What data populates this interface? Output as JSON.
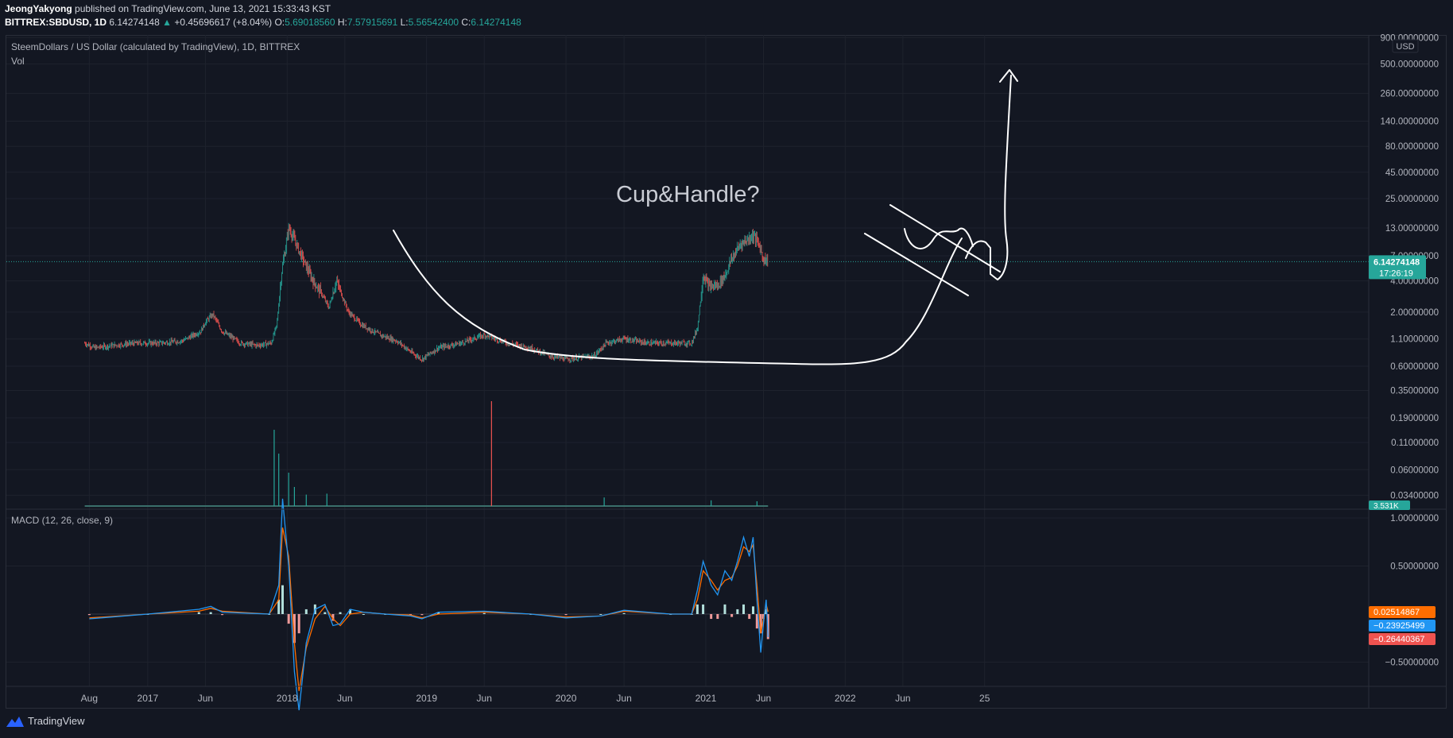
{
  "header": {
    "author": "JeongYakyong",
    "published_text": "published on TradingView.com, June 13, 2021 15:33:43 KST",
    "symbol": "BITTREX:SBDUSD, 1D",
    "last": "6.14274148",
    "change": "+0.45696617 (+8.04%)",
    "o_label": "O:",
    "o": "5.69018560",
    "h_label": "H:",
    "h": "7.57915691",
    "l_label": "L:",
    "l": "5.56542400",
    "c_label": "C:",
    "c": "6.14274148"
  },
  "main_pane": {
    "title": "SteemDollars / US Dollar (calculated by TradingView), 1D, BITTREX",
    "vol_label": "Vol",
    "currency": "USD",
    "price_tag": "6.14274148",
    "countdown": "17:26:19",
    "vol_tag": "3.531K",
    "annotation": "Cup&Handle?"
  },
  "macd_pane": {
    "title": "MACD (12, 26, close, 9)",
    "tag_signal": "0.02514867",
    "tag_macd": "−0.23925499",
    "tag_hist": "−0.26440367"
  },
  "brand": "TradingView",
  "colors": {
    "up": "#26a69a",
    "down": "#ef5350",
    "macd": "#2196f3",
    "signal": "#ff6d00",
    "bg": "#131722"
  },
  "chart_data": [
    {
      "type": "line",
      "title": "SteemDollars / US Dollar (calculated by TradingView), 1D, BITTREX",
      "scale": "log",
      "y_tick_labels": [
        "900.00000000",
        "500.00000000",
        "260.00000000",
        "140.00000000",
        "80.00000000",
        "45.00000000",
        "25.00000000",
        "13.00000000",
        "7.00000000",
        "4.00000000",
        "2.00000000",
        "1.10000000",
        "0.60000000",
        "0.35000000",
        "0.19000000",
        "0.11000000",
        "0.06000000",
        "0.03400000"
      ],
      "x_tick_labels": [
        "Aug",
        "2017",
        "Jun",
        "2018",
        "Jun",
        "2019",
        "Jun",
        "2020",
        "Jun",
        "2021",
        "Jun",
        "2022",
        "Jun",
        "25"
      ],
      "series": [
        {
          "x": [
            "2016-07-20",
            "2016-08-15",
            "2016-10-01",
            "2016-12-01",
            "2017-02-01",
            "2017-04-01",
            "2017-05-20",
            "2017-06-01",
            "2017-06-20",
            "2017-07-15",
            "2017-09-01",
            "2017-10-15",
            "2017-11-20",
            "2017-12-05",
            "2017-12-18",
            "2018-01-05",
            "2018-01-20",
            "2018-02-15",
            "2018-03-10",
            "2018-04-01",
            "2018-04-20",
            "2018-05-10",
            "2018-06-10",
            "2018-07-15",
            "2018-09-01",
            "2018-10-15",
            "2018-11-25",
            "2018-12-20",
            "2019-02-01",
            "2019-04-01",
            "2019-06-01",
            "2019-08-01",
            "2019-10-01",
            "2019-11-20",
            "2020-01-01",
            "2020-03-15",
            "2020-04-15",
            "2020-06-01",
            "2020-08-01",
            "2020-10-01",
            "2020-11-25",
            "2020-12-10",
            "2020-12-25",
            "2021-01-10",
            "2021-02-01",
            "2021-02-20",
            "2021-03-10",
            "2021-04-01",
            "2021-04-20",
            "2021-05-05",
            "2021-05-20",
            "2021-06-01",
            "2021-06-13"
          ],
          "y": [
            1.0,
            0.9,
            0.95,
            1.0,
            1.0,
            1.05,
            1.3,
            1.6,
            1.9,
            1.3,
            1.0,
            0.95,
            1.0,
            1.5,
            5.0,
            13.0,
            10.0,
            6.0,
            4.0,
            3.0,
            2.2,
            4.0,
            2.0,
            1.5,
            1.2,
            1.05,
            0.8,
            0.7,
            0.9,
            1.0,
            1.2,
            1.0,
            0.9,
            0.75,
            0.7,
            0.75,
            1.0,
            1.1,
            1.0,
            1.0,
            1.0,
            1.4,
            4.5,
            3.5,
            3.6,
            4.5,
            6.5,
            9.0,
            10.0,
            11.0,
            9.0,
            6.5,
            6.14
          ]
        }
      ]
    },
    {
      "type": "bar",
      "title": "Vol",
      "x": [
        "2017-11-28",
        "2017-12-10",
        "2018-01-05",
        "2018-01-20",
        "2018-02-20",
        "2018-04-15",
        "2019-06-20",
        "2020-04-10",
        "2021-01-15",
        "2021-05-15"
      ],
      "values": [
        8.0,
        5.5,
        3.5,
        2.0,
        1.2,
        1.3,
        11.0,
        0.9,
        0.6,
        0.5
      ],
      "last_value": "3.531K"
    },
    {
      "type": "line",
      "title": "MACD (12, 26, close, 9)",
      "y_tick_labels": [
        "1.00000000",
        "0.50000000",
        "−0.50000000"
      ],
      "x": [
        "2016-08-01",
        "2017-01-01",
        "2017-05-15",
        "2017-06-15",
        "2017-07-15",
        "2017-11-15",
        "2017-12-10",
        "2017-12-20",
        "2018-01-05",
        "2018-01-20",
        "2018-02-01",
        "2018-02-20",
        "2018-03-15",
        "2018-04-10",
        "2018-05-01",
        "2018-05-20",
        "2018-06-15",
        "2018-07-20",
        "2018-09-15",
        "2018-11-20",
        "2018-12-20",
        "2019-02-01",
        "2019-06-01",
        "2019-10-01",
        "2020-01-01",
        "2020-04-01",
        "2020-06-01",
        "2020-10-01",
        "2020-11-25",
        "2020-12-10",
        "2020-12-25",
        "2021-01-15",
        "2021-02-01",
        "2021-02-20",
        "2021-03-10",
        "2021-03-25",
        "2021-04-10",
        "2021-04-25",
        "2021-05-05",
        "2021-05-15",
        "2021-05-25",
        "2021-06-01",
        "2021-06-08",
        "2021-06-13"
      ],
      "series": [
        {
          "name": "MACD",
          "values": [
            -0.05,
            0.0,
            0.05,
            0.08,
            0.02,
            0.0,
            0.3,
            1.2,
            0.5,
            -0.6,
            -1.0,
            -0.3,
            0.05,
            0.1,
            -0.12,
            -0.1,
            0.05,
            0.02,
            0.0,
            -0.02,
            -0.05,
            0.02,
            0.03,
            0.0,
            -0.04,
            -0.02,
            0.04,
            0.0,
            0.0,
            0.25,
            0.55,
            0.3,
            0.2,
            0.45,
            0.35,
            0.55,
            0.8,
            0.6,
            0.8,
            0.15,
            -0.4,
            -0.1,
            0.15,
            -0.24
          ]
        },
        {
          "name": "Signal",
          "values": [
            -0.04,
            0.0,
            0.03,
            0.06,
            0.03,
            0.0,
            0.15,
            0.9,
            0.6,
            -0.3,
            -0.8,
            -0.35,
            -0.05,
            0.08,
            -0.05,
            -0.12,
            0.0,
            0.02,
            0.0,
            -0.01,
            -0.04,
            0.0,
            0.02,
            0.0,
            -0.03,
            -0.02,
            0.03,
            0.0,
            0.0,
            0.15,
            0.45,
            0.35,
            0.25,
            0.35,
            0.38,
            0.5,
            0.7,
            0.65,
            0.72,
            0.3,
            -0.2,
            -0.05,
            0.1,
            0.025
          ]
        },
        {
          "name": "Histogram",
          "values": [
            -0.01,
            0.0,
            0.02,
            0.02,
            -0.01,
            0.0,
            0.15,
            0.3,
            -0.1,
            -0.3,
            -0.2,
            0.05,
            0.1,
            0.02,
            -0.07,
            0.02,
            0.05,
            0.0,
            0.0,
            -0.01,
            -0.01,
            0.02,
            0.01,
            0.0,
            -0.01,
            0.0,
            0.01,
            0.0,
            0.0,
            0.1,
            0.1,
            -0.05,
            -0.05,
            0.1,
            -0.03,
            0.05,
            0.1,
            -0.05,
            0.08,
            -0.15,
            -0.2,
            -0.05,
            0.05,
            -0.26
          ]
        }
      ]
    }
  ]
}
